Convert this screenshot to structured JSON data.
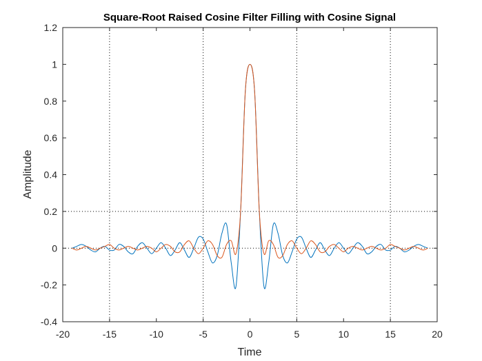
{
  "chart_data": {
    "type": "line",
    "title": "Square-Root Raised Cosine Filter Filling with Cosine Signal",
    "xlabel": "Time",
    "ylabel": "Amplitude",
    "xlim": [
      -20,
      20
    ],
    "ylim": [
      -0.4,
      1.2
    ],
    "xticks": [
      "-20",
      "-15",
      "-10",
      "-5",
      "0",
      "5",
      "10",
      "15",
      "20"
    ],
    "yticks": [
      "-0.4",
      "-0.2",
      "0",
      "0.2",
      "0.4",
      "0.6",
      "0.8",
      "1",
      "1.2"
    ],
    "grid": "dotted lines at x = -15, -5, 5, 15 and y = 0, 0.2",
    "legend": "none",
    "series": [
      {
        "color": "#0072BD",
        "x": [
          -19,
          -18.5,
          -18,
          -17.5,
          -17,
          -16.5,
          -16,
          -15.5,
          -15,
          -14.5,
          -14,
          -13.5,
          -13,
          -12.5,
          -12,
          -11.5,
          -11,
          -10.5,
          -10,
          -9.5,
          -9,
          -8.5,
          -8,
          -7.5,
          -7,
          -6.5,
          -6,
          -5.5,
          -5,
          -4.5,
          -4,
          -3.5,
          -3,
          -2.5,
          -2,
          -1.5,
          -1,
          -0.5,
          0,
          0.5,
          1,
          1.5,
          2,
          2.5,
          3,
          3.5,
          4,
          4.5,
          5,
          5.5,
          6,
          6.5,
          7,
          7.5,
          8,
          8.5,
          9,
          9.5,
          10,
          10.5,
          11,
          11.5,
          12,
          12.5,
          13,
          13.5,
          14,
          14.5,
          15,
          15.5,
          16,
          16.5,
          17,
          17.5,
          18,
          18.5,
          19
        ],
        "y": [
          0.0,
          0.01,
          0.02,
          0.01,
          -0.01,
          -0.02,
          0.0,
          0.01,
          -0.01,
          -0.01,
          0.02,
          0.01,
          -0.02,
          -0.03,
          0.01,
          0.03,
          0.0,
          -0.03,
          0.0,
          0.03,
          0.0,
          -0.04,
          -0.01,
          0.03,
          -0.01,
          -0.05,
          0.0,
          0.06,
          0.05,
          -0.02,
          -0.08,
          -0.04,
          0.08,
          0.13,
          -0.08,
          -0.21,
          0.2,
          0.85,
          1.0,
          0.85,
          0.2,
          -0.21,
          -0.08,
          0.13,
          0.08,
          -0.04,
          -0.08,
          -0.02,
          0.05,
          0.06,
          0.0,
          -0.05,
          -0.01,
          0.03,
          -0.01,
          -0.04,
          0.0,
          0.03,
          0.0,
          -0.03,
          0.0,
          0.03,
          0.01,
          -0.03,
          -0.02,
          0.01,
          0.02,
          -0.01,
          -0.01,
          0.01,
          0.0,
          -0.02,
          -0.01,
          0.01,
          0.02,
          0.01,
          0.0
        ]
      },
      {
        "color": "#D95319",
        "x": [
          -19,
          -18.5,
          -18,
          -17.5,
          -17,
          -16.5,
          -16,
          -15.5,
          -15,
          -14.5,
          -14,
          -13.5,
          -13,
          -12.5,
          -12,
          -11.5,
          -11,
          -10.5,
          -10,
          -9.5,
          -9,
          -8.5,
          -8,
          -7.5,
          -7,
          -6.5,
          -6,
          -5.5,
          -5,
          -4.5,
          -4,
          -3.5,
          -3,
          -2.5,
          -2,
          -1.5,
          -1,
          -0.5,
          0,
          0.5,
          1,
          1.5,
          2,
          2.5,
          3,
          3.5,
          4,
          4.5,
          5,
          5.5,
          6,
          6.5,
          7,
          7.5,
          8,
          8.5,
          9,
          9.5,
          10,
          10.5,
          11,
          11.5,
          12,
          12.5,
          13,
          13.5,
          14,
          14.5,
          15,
          15.5,
          16,
          16.5,
          17,
          17.5,
          18,
          18.5,
          19
        ],
        "y": [
          0.0,
          -0.01,
          0.0,
          0.01,
          0.0,
          -0.01,
          0.0,
          0.01,
          0.02,
          0.0,
          -0.01,
          0.0,
          0.01,
          0.0,
          -0.01,
          0.0,
          0.01,
          0.0,
          -0.02,
          0.0,
          0.02,
          0.01,
          -0.02,
          -0.02,
          0.02,
          0.04,
          0.0,
          -0.03,
          0.0,
          0.04,
          0.02,
          -0.04,
          -0.05,
          0.02,
          0.04,
          -0.03,
          0.2,
          0.85,
          1.0,
          0.85,
          0.2,
          -0.03,
          0.04,
          0.02,
          -0.05,
          -0.04,
          0.02,
          0.04,
          0.0,
          -0.03,
          0.0,
          0.04,
          0.02,
          -0.02,
          -0.02,
          0.01,
          0.02,
          0.0,
          -0.02,
          0.0,
          0.01,
          0.0,
          -0.01,
          0.0,
          0.01,
          0.0,
          -0.01,
          0.0,
          0.02,
          0.01,
          0.0,
          -0.01,
          0.0,
          0.01,
          0.0,
          -0.01,
          0.0
        ]
      }
    ]
  }
}
